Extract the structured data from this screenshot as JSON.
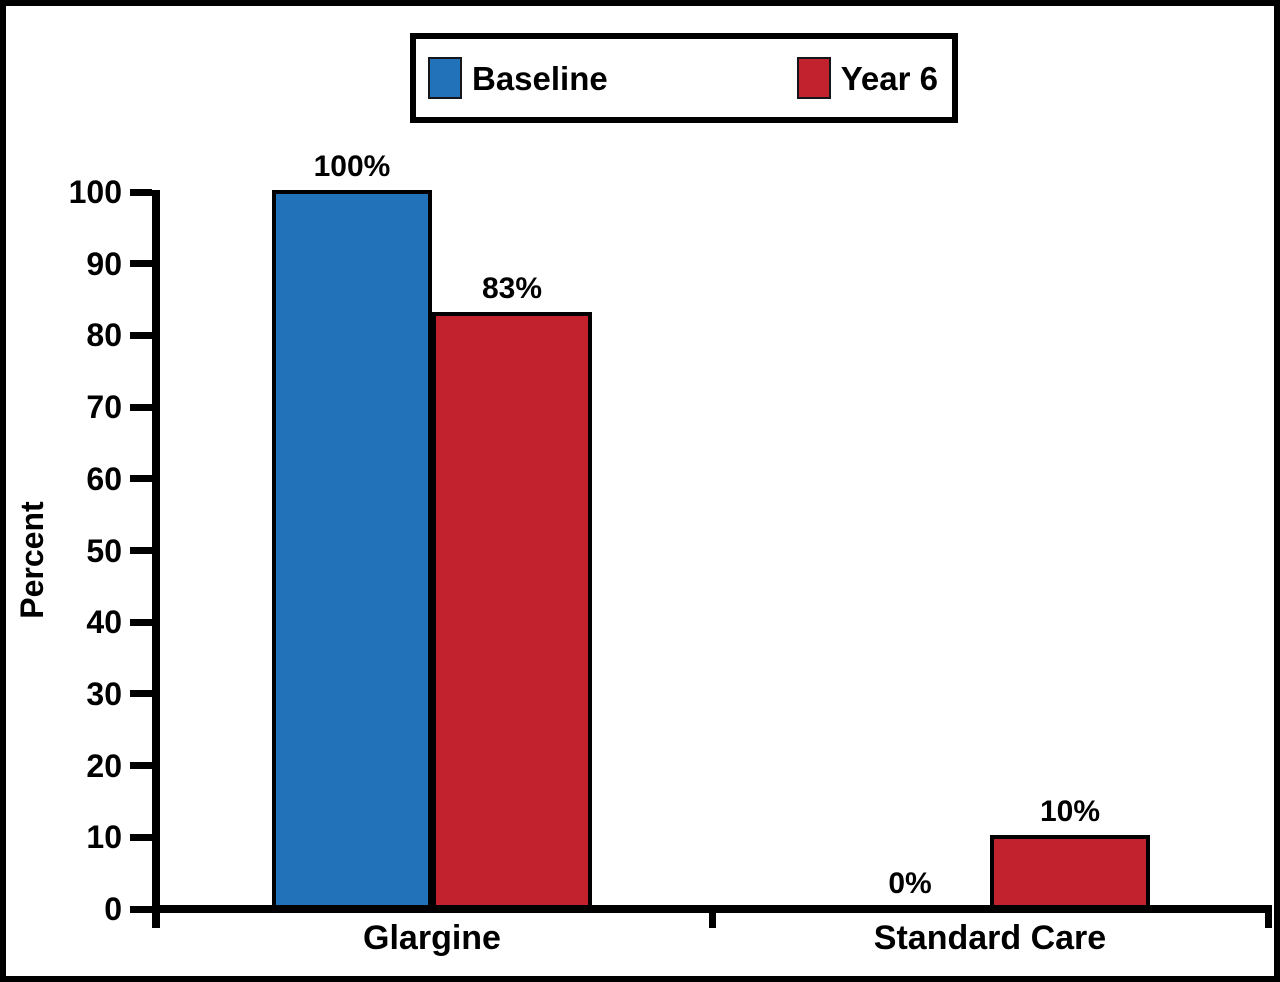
{
  "page": {
    "background": "#ffffff",
    "frame_border_color": "#000000"
  },
  "legend": {
    "items": [
      {
        "label": "Baseline",
        "color": "#2172B8"
      },
      {
        "label": "Year 6",
        "color": "#C2212E"
      }
    ]
  },
  "chart_data": {
    "type": "bar",
    "title": "",
    "xlabel": "",
    "ylabel": "Percent",
    "ylim": [
      0,
      100
    ],
    "yticks": [
      0,
      10,
      20,
      30,
      40,
      50,
      60,
      70,
      80,
      90,
      100
    ],
    "grid": false,
    "legend_position": "top-center",
    "categories": [
      "Glargine",
      "Standard Care"
    ],
    "series": [
      {
        "name": "Baseline",
        "color": "#2172B8",
        "values": [
          100,
          0
        ],
        "labels": [
          "100%",
          "0%"
        ]
      },
      {
        "name": "Year 6",
        "color": "#C2212E",
        "values": [
          83,
          10
        ],
        "labels": [
          "83%",
          "10%"
        ]
      }
    ]
  }
}
